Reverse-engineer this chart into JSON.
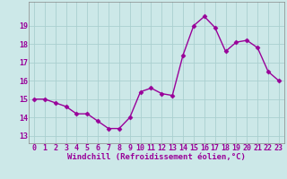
{
  "x": [
    0,
    1,
    2,
    3,
    4,
    5,
    6,
    7,
    8,
    9,
    10,
    11,
    12,
    13,
    14,
    15,
    16,
    17,
    18,
    19,
    20,
    21,
    22,
    23
  ],
  "y": [
    15.0,
    15.0,
    14.8,
    14.6,
    14.2,
    14.2,
    13.8,
    13.4,
    13.4,
    14.0,
    15.4,
    15.6,
    15.3,
    15.2,
    17.4,
    19.0,
    19.5,
    18.9,
    17.6,
    18.1,
    18.2,
    17.8,
    16.5,
    16.0
  ],
  "line_color": "#990099",
  "marker": "D",
  "markersize": 2.5,
  "linewidth": 1.0,
  "bg_color": "#cce8e8",
  "grid_color": "#aacfcf",
  "xlabel": "Windchill (Refroidissement éolien,°C)",
  "yticks": [
    13,
    14,
    15,
    16,
    17,
    18,
    19
  ],
  "xticks": [
    0,
    1,
    2,
    3,
    4,
    5,
    6,
    7,
    8,
    9,
    10,
    11,
    12,
    13,
    14,
    15,
    16,
    17,
    18,
    19,
    20,
    21,
    22,
    23
  ],
  "ylim": [
    12.6,
    20.3
  ],
  "xlim": [
    -0.5,
    23.5
  ],
  "xlabel_fontsize": 6.5,
  "tick_fontsize": 6.0
}
